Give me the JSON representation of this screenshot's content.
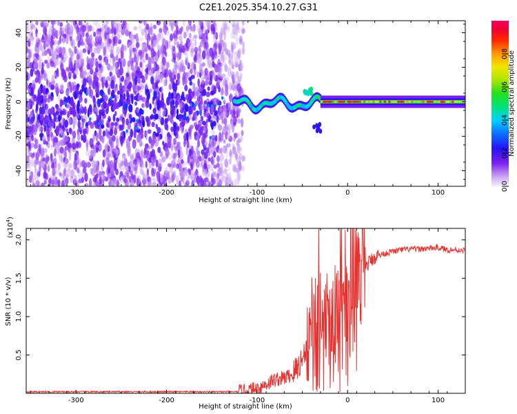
{
  "title": "C2E1.2025.354.10.27.G31",
  "colors": {
    "snr_line": "#e8312f",
    "dot": "#7a1ee8",
    "axis": "#000000"
  },
  "chart_data": [
    {
      "type": "heatmap",
      "title": "C2E1.2025.354.10.27.G31",
      "xlabel": "Height of straight line (km)",
      "ylabel": "Frequency (Hz)",
      "xlim": [
        -355,
        130
      ],
      "ylim": [
        -49,
        47
      ],
      "xticks": [
        -300,
        -200,
        -100,
        0,
        100
      ],
      "yticks": [
        -40,
        -20,
        0,
        20,
        40
      ],
      "grid": false,
      "colorbar": {
        "label": "Normalized spectral amplitude",
        "range": [
          0,
          1
        ],
        "ticks": [
          "0.0",
          "0.2",
          "0.4",
          "0.6",
          "0.8"
        ],
        "tick_values": [
          0.0,
          0.2,
          0.4,
          0.6,
          0.8
        ],
        "colormap": "rainbow (white-lavender -> violet -> blue -> cyan -> green -> yellow -> orange -> red -> magenta)"
      },
      "regions": [
        {
          "name": "scattered noise",
          "x_range": [
            -355,
            -125
          ],
          "freq_range": [
            -49,
            47
          ],
          "amplitude": 0.1
        },
        {
          "name": "main tone",
          "x_range": [
            -125,
            130
          ],
          "freq_center": 0,
          "amplitude": 0.7
        },
        {
          "name": "spur",
          "x_range": [
            -38,
            -30
          ],
          "freq_center": -15,
          "amplitude": 0.2
        }
      ]
    },
    {
      "type": "line",
      "xlabel": "Height of straight line (km)",
      "ylabel": "SNR (10 * v/v)",
      "y_scale_label": "(x10",
      "y_scale_exponent": "4",
      "y_scale_suffix": ")",
      "xlim": [
        -355,
        130
      ],
      "ylim": [
        0,
        2.15
      ],
      "xticks": [
        -300,
        -200,
        -100,
        0,
        100
      ],
      "yticks": [
        0.5,
        1.0,
        1.5,
        2.0
      ],
      "grid": false,
      "series": [
        {
          "name": "SNR",
          "x": [
            -355,
            -300,
            -250,
            -200,
            -150,
            -120,
            -110,
            -100,
            -90,
            -80,
            -70,
            -60,
            -50,
            -40,
            -30,
            -20,
            -10,
            0,
            10,
            20,
            25,
            30,
            40,
            50,
            60,
            70,
            80,
            90,
            100,
            110,
            120,
            130
          ],
          "y": [
            0.02,
            0.02,
            0.02,
            0.02,
            0.02,
            0.02,
            0.03,
            0.06,
            0.12,
            0.18,
            0.2,
            0.25,
            0.45,
            0.7,
            0.85,
            0.85,
            0.9,
            1.2,
            1.5,
            1.65,
            1.72,
            1.78,
            1.82,
            1.85,
            1.87,
            1.88,
            1.88,
            1.89,
            1.9,
            1.87,
            1.87,
            1.86
          ]
        }
      ]
    }
  ]
}
